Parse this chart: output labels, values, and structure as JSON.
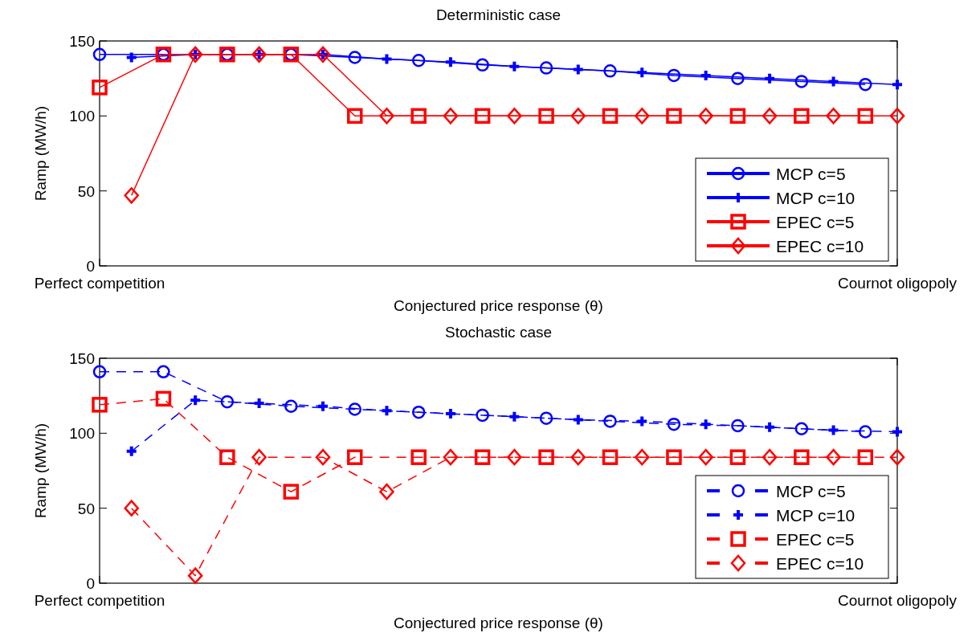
{
  "chart_data": [
    {
      "type": "line",
      "title": "Deterministic case",
      "xlabel": "Conjectured price response (θ)",
      "ylabel": "Ramp (MW/h)",
      "ylim": [
        0,
        150
      ],
      "categories": [
        "Perfect competition",
        null,
        null,
        null,
        null,
        null,
        null,
        null,
        null,
        null,
        null,
        null,
        null,
        null,
        null,
        null,
        null,
        null,
        null,
        null,
        null,
        null,
        null,
        null,
        null,
        "Cournot oligopoly"
      ],
      "yticks": [
        0,
        50,
        100,
        150
      ],
      "legend": "bottom right",
      "line_style": "solid",
      "series": [
        {
          "name": "MCP c=5",
          "color": "#0000ff",
          "marker": "circle",
          "values": [
            141,
            null,
            141,
            null,
            141,
            null,
            141,
            null,
            139,
            null,
            137,
            null,
            134,
            null,
            132,
            null,
            130,
            null,
            127,
            null,
            125,
            null,
            123,
            null,
            121,
            null
          ]
        },
        {
          "name": "MCP c=10",
          "color": "#0000ff",
          "marker": "cross",
          "values": [
            null,
            139,
            null,
            141,
            null,
            141,
            null,
            141,
            null,
            138,
            null,
            136,
            null,
            133,
            null,
            131,
            null,
            129,
            null,
            127,
            null,
            125,
            null,
            123,
            null,
            121
          ]
        },
        {
          "name": "EPEC c=5",
          "color": "#ff0000",
          "marker": "square",
          "values": [
            119,
            null,
            141,
            null,
            141,
            null,
            141,
            null,
            100,
            null,
            100,
            null,
            100,
            null,
            100,
            null,
            100,
            null,
            100,
            null,
            100,
            null,
            100,
            null,
            100,
            null
          ]
        },
        {
          "name": "EPEC c=10",
          "color": "#ff0000",
          "marker": "diamond",
          "values": [
            null,
            47,
            null,
            141,
            null,
            141,
            null,
            141,
            null,
            100,
            null,
            100,
            null,
            100,
            null,
            100,
            null,
            100,
            null,
            100,
            null,
            100,
            null,
            100,
            null,
            100
          ]
        }
      ]
    },
    {
      "type": "line",
      "title": "Stochastic case",
      "xlabel": "Conjectured price response (θ)",
      "ylabel": "Ramp (MW/h)",
      "ylim": [
        0,
        150
      ],
      "categories": [
        "Perfect competition",
        null,
        null,
        null,
        null,
        null,
        null,
        null,
        null,
        null,
        null,
        null,
        null,
        null,
        null,
        null,
        null,
        null,
        null,
        null,
        null,
        null,
        null,
        null,
        null,
        "Cournot oligopoly"
      ],
      "yticks": [
        0,
        50,
        100,
        150
      ],
      "legend": "bottom right",
      "line_style": "dashed",
      "series": [
        {
          "name": "MCP c=5",
          "color": "#0000ff",
          "marker": "circle",
          "values": [
            141,
            null,
            141,
            null,
            121,
            null,
            118,
            null,
            116,
            null,
            114,
            null,
            112,
            null,
            110,
            null,
            108,
            null,
            106,
            null,
            105,
            null,
            103,
            null,
            101,
            null
          ]
        },
        {
          "name": "MCP c=10",
          "color": "#0000ff",
          "marker": "cross",
          "values": [
            null,
            88,
            null,
            122,
            null,
            120,
            null,
            118,
            null,
            115,
            null,
            113,
            null,
            111,
            null,
            109,
            null,
            108,
            null,
            106,
            null,
            104,
            null,
            102,
            null,
            101
          ]
        },
        {
          "name": "EPEC c=5",
          "color": "#ff0000",
          "marker": "square",
          "values": [
            119,
            null,
            123,
            null,
            84,
            null,
            61,
            null,
            84,
            null,
            84,
            null,
            84,
            null,
            84,
            null,
            84,
            null,
            84,
            null,
            84,
            null,
            84,
            null,
            84,
            null
          ]
        },
        {
          "name": "EPEC c=10",
          "color": "#ff0000",
          "marker": "diamond",
          "values": [
            null,
            50,
            null,
            5,
            null,
            84,
            null,
            84,
            null,
            61,
            null,
            84,
            null,
            84,
            null,
            84,
            null,
            84,
            null,
            84,
            null,
            84,
            null,
            84,
            null,
            84
          ]
        }
      ]
    }
  ]
}
